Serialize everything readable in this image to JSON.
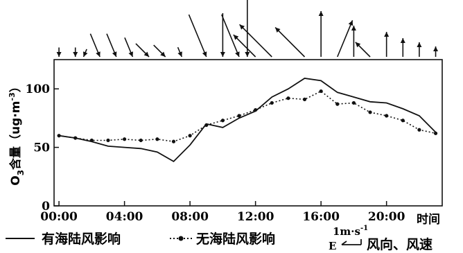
{
  "chart_data": {
    "type": "line",
    "title": "",
    "xlabel": "时间",
    "ylabel": {
      "main": "O",
      "sub": "3",
      "rest": "含量（ug·m",
      "sup": "-3",
      "close": "）"
    },
    "ylim": [
      0,
      125
    ],
    "yticks": [
      0,
      50,
      100
    ],
    "xlim": [
      -0.3,
      23.4
    ],
    "xticks": [
      {
        "v": 0,
        "label": "00:00"
      },
      {
        "v": 4,
        "label": "04:00"
      },
      {
        "v": 8,
        "label": "08:00"
      },
      {
        "v": 12,
        "label": "12:00"
      },
      {
        "v": 16,
        "label": "16:00"
      },
      {
        "v": 20,
        "label": "20:00"
      }
    ],
    "grid": false,
    "series": [
      {
        "name": "有海陆风影响",
        "style": "solid",
        "x": [
          0,
          1,
          2,
          3,
          4,
          5,
          6,
          7,
          8,
          9,
          10,
          11,
          12,
          13,
          14,
          15,
          16,
          17,
          18,
          19,
          20,
          21,
          22,
          23
        ],
        "y": [
          60,
          58,
          55,
          51,
          50,
          49,
          46,
          38,
          52,
          70,
          67,
          75,
          81,
          93,
          100,
          109,
          107,
          97,
          93,
          89,
          88,
          83,
          77,
          63
        ]
      },
      {
        "name": "无海陆风影响",
        "style": "dotted",
        "x": [
          0,
          1,
          2,
          3,
          4,
          5,
          6,
          7,
          8,
          9,
          10,
          11,
          12,
          13,
          14,
          15,
          16,
          17,
          18,
          19,
          20,
          21,
          22,
          23
        ],
        "y": [
          60,
          58,
          56,
          56,
          57,
          56,
          57,
          55,
          60,
          69,
          73,
          77,
          82,
          88,
          92,
          91,
          98,
          87,
          88,
          80,
          77,
          73,
          65,
          62
        ]
      }
    ],
    "wind_arrows": [
      {
        "x": 0,
        "to": "S",
        "speed": 0.45
      },
      {
        "x": 1,
        "to": "S",
        "speed": 0.45
      },
      {
        "x": 1.5,
        "to": "SSW",
        "speed": 0.4
      },
      {
        "x": 2.5,
        "to": "SSE",
        "speed": 1.2
      },
      {
        "x": 3.5,
        "to": "SSE",
        "speed": 1.2
      },
      {
        "x": 4.5,
        "to": "SSE",
        "speed": 1.0
      },
      {
        "x": 5.5,
        "to": "SE",
        "speed": 0.9
      },
      {
        "x": 6.5,
        "to": "SE",
        "speed": 0.8
      },
      {
        "x": 7.5,
        "to": "SSE",
        "speed": 0.5
      },
      {
        "x": 9,
        "to": "SSE",
        "speed": 2.2
      },
      {
        "x": 10,
        "to": "S",
        "speed": 2.1
      },
      {
        "x": 11,
        "to": "SSE",
        "speed": 2.2
      },
      {
        "x": 11.5,
        "to": "S",
        "speed": 2.8
      },
      {
        "x": 12,
        "to": "NW",
        "speed": 1.5
      },
      {
        "x": 13,
        "to": "NW",
        "speed": 2.2
      },
      {
        "x": 15,
        "to": "NW",
        "speed": 2.0
      },
      {
        "x": 16,
        "to": "N",
        "speed": 2.2
      },
      {
        "x": 17,
        "to": "NNE",
        "speed": 1.9
      },
      {
        "x": 18,
        "to": "N",
        "speed": 1.5
      },
      {
        "x": 19,
        "to": "NW",
        "speed": 1.0
      },
      {
        "x": 20,
        "to": "N",
        "speed": 1.2
      },
      {
        "x": 21,
        "to": "N",
        "speed": 0.9
      },
      {
        "x": 22,
        "to": "N",
        "speed": 0.7
      },
      {
        "x": 23,
        "to": "N",
        "speed": 0.5
      }
    ],
    "legend": {
      "placement": "bottom",
      "entries": [
        "有海陆风影响",
        "无海陆风影响"
      ],
      "wind_reference": {
        "speed_label": "1m·s",
        "speed_sup": "-1",
        "direction_label": "E",
        "text": "风向、风速"
      }
    }
  }
}
